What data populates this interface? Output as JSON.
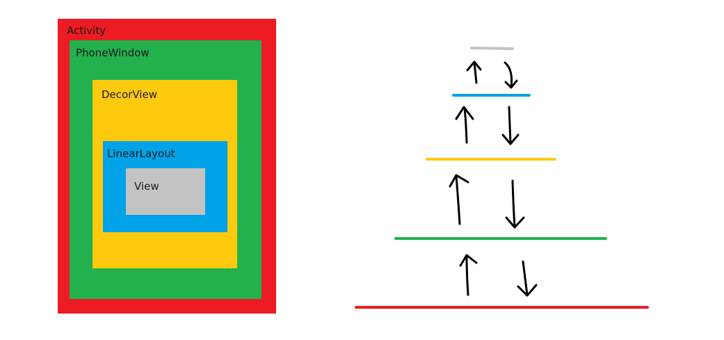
{
  "nesting": {
    "activity": {
      "label": "Activity",
      "color": "#ed1c24"
    },
    "phone_window": {
      "label": "PhoneWindow",
      "color": "#22b14c"
    },
    "decor_view": {
      "label": "DecorView",
      "color": "#ffc90e"
    },
    "linear_layout": {
      "label": "LinearLayout",
      "color": "#00a2e8"
    },
    "view": {
      "label": "View",
      "color": "#c3c3c3"
    }
  },
  "event_flow": {
    "levels": [
      {
        "layer": "view",
        "color": "#c3c3c3"
      },
      {
        "layer": "linear_layout",
        "color": "#00a2e8"
      },
      {
        "layer": "decor_view",
        "color": "#ffc90e"
      },
      {
        "layer": "phone_window",
        "color": "#22b14c"
      },
      {
        "layer": "activity",
        "color": "#ed1c24"
      }
    ],
    "arrow_color": "#000000",
    "up_arrow_icon": "arrow-up-icon",
    "down_arrow_icon": "arrow-down-icon"
  }
}
